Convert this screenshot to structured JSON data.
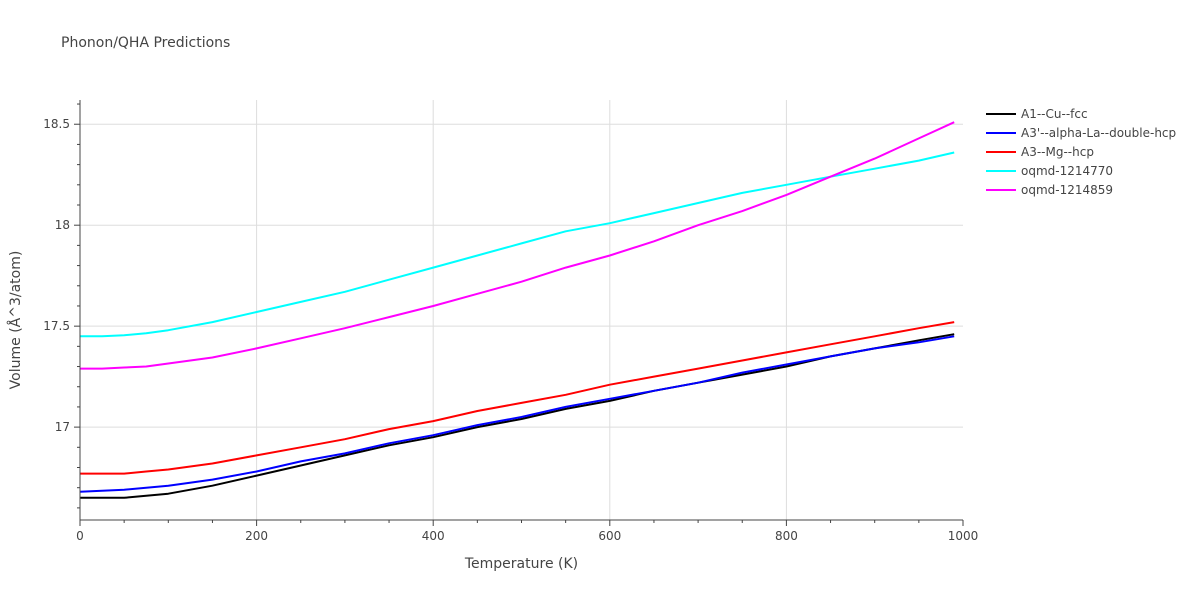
{
  "chart_data": {
    "type": "line",
    "title": "Phonon/QHA Predictions",
    "xlabel": "Temperature (K)",
    "ylabel": "Volume (Å^3/atom)",
    "xlim": [
      0,
      1000
    ],
    "ylim": [
      16.54,
      18.62
    ],
    "xticks": [
      {
        "value": 0,
        "label": "0"
      },
      {
        "value": 200,
        "label": "200"
      },
      {
        "value": 400,
        "label": "400"
      },
      {
        "value": 600,
        "label": "600"
      },
      {
        "value": 800,
        "label": "800"
      },
      {
        "value": 1000,
        "label": "1000"
      }
    ],
    "yticks": [
      {
        "value": 17,
        "label": "17"
      },
      {
        "value": 17.5,
        "label": "17.5"
      },
      {
        "value": 18,
        "label": "18"
      },
      {
        "value": 18.5,
        "label": "18.5"
      }
    ],
    "grid": true,
    "legend_position": "top-right",
    "x": [
      0,
      25,
      50,
      75,
      100,
      150,
      200,
      250,
      300,
      350,
      400,
      450,
      500,
      550,
      600,
      650,
      700,
      750,
      800,
      850,
      900,
      950,
      990
    ],
    "series": [
      {
        "name": "A1--Cu--fcc",
        "color": "#000000",
        "values": [
          16.65,
          16.65,
          16.65,
          16.66,
          16.67,
          16.71,
          16.76,
          16.81,
          16.86,
          16.91,
          16.95,
          17.0,
          17.04,
          17.09,
          17.13,
          17.18,
          17.22,
          17.26,
          17.3,
          17.35,
          17.39,
          17.43,
          17.46
        ]
      },
      {
        "name": "A3'--alpha-La--double-hcp",
        "color": "#0000ff",
        "values": [
          16.68,
          16.685,
          16.69,
          16.7,
          16.71,
          16.74,
          16.78,
          16.83,
          16.87,
          16.92,
          16.96,
          17.01,
          17.05,
          17.1,
          17.14,
          17.18,
          17.22,
          17.27,
          17.31,
          17.35,
          17.39,
          17.42,
          17.45
        ]
      },
      {
        "name": "A3--Mg--hcp",
        "color": "#ff0000",
        "values": [
          16.77,
          16.77,
          16.77,
          16.78,
          16.79,
          16.82,
          16.86,
          16.9,
          16.94,
          16.99,
          17.03,
          17.08,
          17.12,
          17.16,
          17.21,
          17.25,
          17.29,
          17.33,
          17.37,
          17.41,
          17.45,
          17.49,
          17.52
        ]
      },
      {
        "name": "oqmd-1214770",
        "color": "#00ffff",
        "values": [
          17.45,
          17.45,
          17.455,
          17.465,
          17.48,
          17.52,
          17.57,
          17.62,
          17.67,
          17.73,
          17.79,
          17.85,
          17.91,
          17.97,
          18.01,
          18.06,
          18.11,
          18.16,
          18.2,
          18.24,
          18.28,
          18.32,
          18.36
        ]
      },
      {
        "name": "oqmd-1214859",
        "color": "#ff00ff",
        "values": [
          17.29,
          17.29,
          17.295,
          17.3,
          17.315,
          17.345,
          17.39,
          17.44,
          17.49,
          17.545,
          17.6,
          17.66,
          17.72,
          17.79,
          17.85,
          17.92,
          18.0,
          18.07,
          18.15,
          18.24,
          18.33,
          18.43,
          18.51
        ]
      }
    ]
  }
}
